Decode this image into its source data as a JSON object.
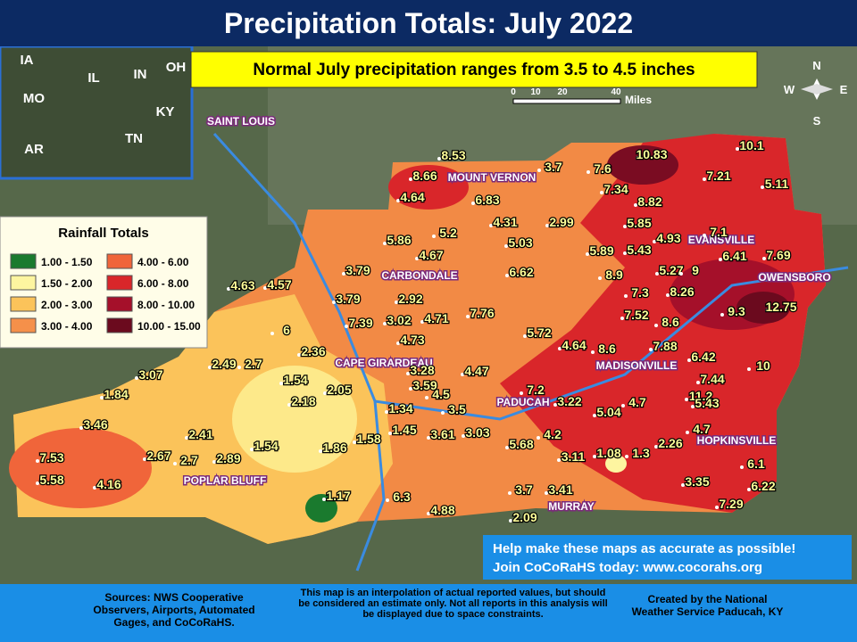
{
  "header": {
    "title": "Precipitation Totals: July 2022",
    "subtitle": "Normal July precipitation ranges from 3.5 to 4.5 inches"
  },
  "inset": {
    "states": [
      "IA",
      "IL",
      "IN",
      "OH",
      "MO",
      "KY",
      "AR",
      "TN"
    ]
  },
  "scale": {
    "ticks": [
      "0",
      "10",
      "20",
      "40"
    ],
    "unit": "Miles"
  },
  "compass": {
    "n": "N",
    "e": "E",
    "s": "S",
    "w": "W"
  },
  "legend": {
    "title": "Rainfall Totals",
    "items": [
      {
        "label": "1.00 - 1.50",
        "color": "#1a7a2e"
      },
      {
        "label": "4.00 - 6.00",
        "color": "#f0653a"
      },
      {
        "label": "1.50 - 2.00",
        "color": "#fdf5a0"
      },
      {
        "label": "6.00 - 8.00",
        "color": "#d9262a"
      },
      {
        "label": "2.00 - 3.00",
        "color": "#fbc35a"
      },
      {
        "label": "8.00 - 10.00",
        "color": "#a5102a"
      },
      {
        "label": "3.00 - 4.00",
        "color": "#f5904a"
      },
      {
        "label": "10.00 - 15.00",
        "color": "#6b0a1e"
      }
    ]
  },
  "cities": [
    "SAINT LOUIS",
    "MOUNT VERNON",
    "EVANSVILLE",
    "CARBONDALE",
    "OWENSBORO",
    "CAPE GIRARDEAU",
    "MADISONVILLE",
    "PADUCAH",
    "HOPKINSVILLE",
    "POPLAR BLUFF",
    "MURRAY"
  ],
  "stations": [
    "8.53",
    "8.66",
    "3.7",
    "7.6",
    "10.83",
    "10.1",
    "7.34",
    "8.82",
    "7.21",
    "5.11",
    "4.64",
    "6.83",
    "4.31",
    "2.99",
    "5.85",
    "5.86",
    "5.2",
    "5.03",
    "7.1",
    "4.67",
    "5.89",
    "5.43",
    "4.93",
    "6.41",
    "7.69",
    "3.79",
    "6.62",
    "8.9",
    "5.27",
    "9",
    "4.63",
    "4.57",
    "8.26",
    "3.79",
    "2.92",
    "7.3",
    "9.3",
    "12.75",
    "7.39",
    "3.02",
    "4.71",
    "7.76",
    "7.52",
    "8.6",
    "6",
    "5.72",
    "4.73",
    "4.64",
    "8.6",
    "7.88",
    "6.42",
    "2.36",
    "2.49",
    "2.7",
    "3.07",
    "3.28",
    "4.47",
    "10",
    "7.44",
    "1.54",
    "3.59",
    "2.05",
    "7.2",
    "1.84",
    "4.5",
    "2.18",
    "3.22",
    "4.7",
    "11.2",
    "1.34",
    "3.5",
    "5.04",
    "5.43",
    "3.46",
    "1.45",
    "3.61",
    "3.03",
    "4.2",
    "4.7",
    "2.41",
    "1.58",
    "1.54",
    "1.86",
    "5.68",
    "2.26",
    "7.53",
    "2.67",
    "2.7",
    "2.89",
    "3.11",
    "1.08",
    "1.3",
    "6.1",
    "5.58",
    "4.16",
    "3.35",
    "6.22",
    "3.7",
    "3.41",
    "1.17",
    "6.3",
    "4.88",
    "2.09",
    "7.29"
  ],
  "help": {
    "line1": "Help make these maps as accurate as possible!",
    "line2": "Join CoCoRaHS today: www.cocorahs.org"
  },
  "footer": {
    "sources": "Sources: NWS Cooperative Observers, Airports, Automated Gages, and CoCoRaHS.",
    "disclaimer": "This map is an interpolation of actual reported values, but should be considered an estimate only. Not all reports in this analysis will be displayed due to space constraints.",
    "credit": "Created by the National Weather Service Paducah, KY"
  }
}
